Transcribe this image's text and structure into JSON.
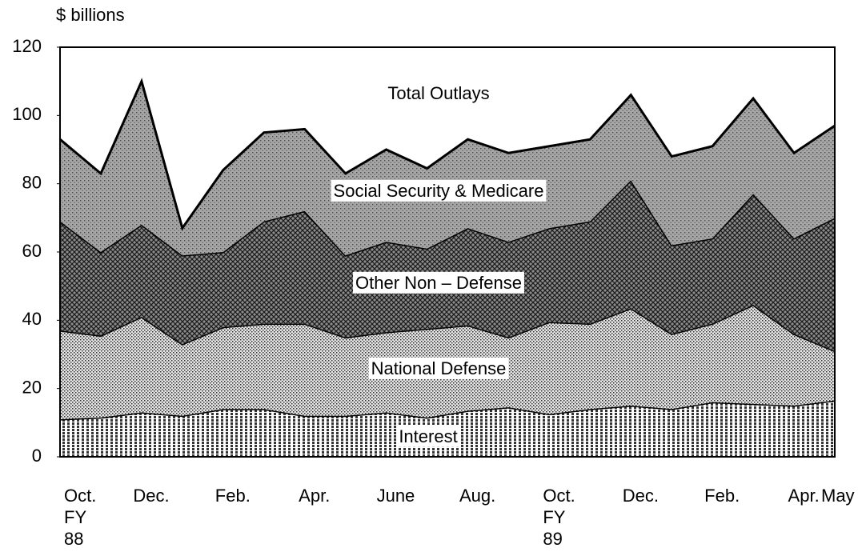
{
  "chart_data": {
    "type": "stacked_area",
    "y_axis_label": "$ billions",
    "annotation": "Total Outlays",
    "categories": [
      "Oct.\nFY\n88",
      null,
      "Dec.",
      null,
      "Feb.",
      null,
      "Apr.",
      null,
      "June",
      null,
      "Aug.",
      null,
      "Oct.\nFY\n89",
      null,
      "Dec.",
      null,
      "Feb.",
      null,
      "Apr.",
      "May"
    ],
    "series": [
      {
        "name": "Interest",
        "color": "#ffffff",
        "values": [
          11,
          11.5,
          13,
          12,
          14,
          14,
          12,
          12,
          13,
          11.5,
          13.5,
          14.5,
          12.5,
          14,
          15,
          14,
          16,
          15.5,
          15,
          16.5
        ]
      },
      {
        "name": "National Defense",
        "color": "#e6e6e6",
        "values": [
          26,
          24,
          28,
          21,
          24,
          25,
          27,
          23,
          23.5,
          26,
          25,
          20.5,
          27,
          25,
          28.5,
          22,
          23,
          29,
          21,
          14.5
        ]
      },
      {
        "name": "Other Non – Defense",
        "color": "#8c8c8c",
        "values": [
          32,
          24.5,
          27,
          26,
          22,
          30,
          33,
          24,
          26.5,
          23.5,
          28.5,
          28,
          27.5,
          30,
          37.5,
          26,
          25,
          32.5,
          28,
          39
        ]
      },
      {
        "name": "Social Security & Medicare",
        "color": "#a6a6a6",
        "values": [
          24,
          23,
          42,
          8,
          24,
          26,
          24,
          24,
          27,
          23.5,
          26,
          26,
          24,
          24,
          25,
          26,
          27,
          28,
          25,
          27
        ]
      }
    ],
    "ylim": [
      0,
      120
    ],
    "yticks": [
      0,
      20,
      40,
      60,
      80,
      100,
      120
    ],
    "grid": false
  }
}
